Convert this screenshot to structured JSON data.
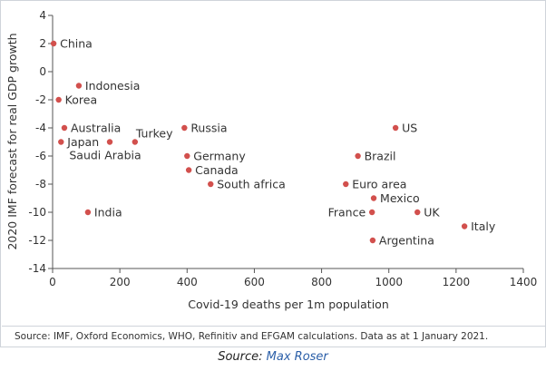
{
  "chart_data": {
    "type": "scatter",
    "title": "",
    "xlabel": "Covid-19 deaths per 1m population",
    "ylabel": "2020 IMF forecast for real GDP growth",
    "xlim": [
      0,
      1400
    ],
    "ylim": [
      -14,
      4
    ],
    "x_ticks": [
      0,
      200,
      400,
      600,
      800,
      1000,
      1200,
      1400
    ],
    "y_ticks": [
      4,
      2,
      0,
      -2,
      -4,
      -6,
      -8,
      -10,
      -12,
      -14
    ],
    "grid": false,
    "marker_color": "#d2504d",
    "points": [
      {
        "label": "China",
        "x": 3,
        "y": 2
      },
      {
        "label": "Indonesia",
        "x": 78,
        "y": -1
      },
      {
        "label": "Korea",
        "x": 18,
        "y": -2
      },
      {
        "label": "Australia",
        "x": 35,
        "y": -4
      },
      {
        "label": "Japan",
        "x": 25,
        "y": -5
      },
      {
        "label": "Saudi Arabia",
        "x": 170,
        "y": -5
      },
      {
        "label": "Turkey",
        "x": 245,
        "y": -5
      },
      {
        "label": "Russia",
        "x": 392,
        "y": -4
      },
      {
        "label": "Germany",
        "x": 400,
        "y": -6
      },
      {
        "label": "Canada",
        "x": 405,
        "y": -7
      },
      {
        "label": "South africa",
        "x": 470,
        "y": -8
      },
      {
        "label": "India",
        "x": 105,
        "y": -10
      },
      {
        "label": "US",
        "x": 1020,
        "y": -4
      },
      {
        "label": "Brazil",
        "x": 908,
        "y": -6
      },
      {
        "label": "Euro area",
        "x": 872,
        "y": -8
      },
      {
        "label": "Mexico",
        "x": 955,
        "y": -9
      },
      {
        "label": "France",
        "x": 950,
        "y": -10
      },
      {
        "label": "UK",
        "x": 1085,
        "y": -10
      },
      {
        "label": "Italy",
        "x": 1225,
        "y": -11
      },
      {
        "label": "Argentina",
        "x": 952,
        "y": -12
      }
    ]
  },
  "source_note": "Source: IMF, Oxford Economics, WHO, Refinitiv and EFGAM calculations. Data as at 1 January 2021.",
  "credit": {
    "prefix": "Source: ",
    "name": "Max Roser"
  }
}
